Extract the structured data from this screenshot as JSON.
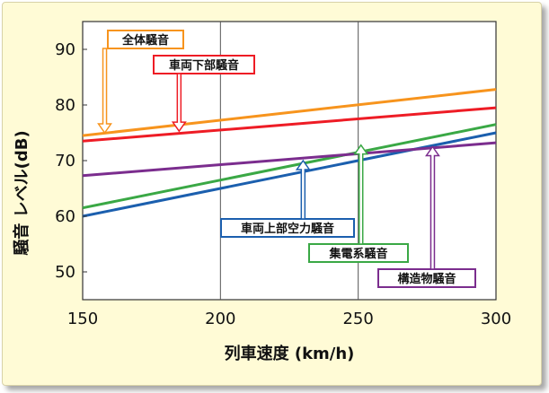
{
  "chart_data": {
    "type": "line",
    "title": "",
    "xlabel": "列車速度 (km/h)",
    "ylabel": "騒音 レベル(dB)",
    "xlim": [
      150,
      300
    ],
    "ylim": [
      45,
      95
    ],
    "x_ticks": [
      150,
      200,
      250,
      300
    ],
    "y_ticks": [
      50,
      60,
      70,
      80,
      90
    ],
    "grid": "vertical at x ticks",
    "legend": "callout labels with arrows",
    "series": [
      {
        "name": "全体騒音",
        "color": "#f7941d",
        "x": [
          150,
          300
        ],
        "y": [
          74.5,
          82.8
        ]
      },
      {
        "name": "車両下部騒音",
        "color": "#ee1c25",
        "x": [
          150,
          300
        ],
        "y": [
          73.5,
          79.5
        ]
      },
      {
        "name": "車両上部空力騒音",
        "color": "#1b5fae",
        "x": [
          150,
          300
        ],
        "y": [
          60.0,
          75.0
        ]
      },
      {
        "name": "集電系騒音",
        "color": "#3aa845",
        "x": [
          150,
          300
        ],
        "y": [
          61.5,
          76.5
        ]
      },
      {
        "name": "構造物騒音",
        "color": "#7b2d8e",
        "x": [
          150,
          300
        ],
        "y": [
          67.3,
          73.2
        ]
      }
    ],
    "annotations": [
      {
        "text": "全体騒音",
        "color": "#f7941d",
        "target": [
          158,
          75.0
        ]
      },
      {
        "text": "車両下部騒音",
        "color": "#ee1c25",
        "target": [
          185,
          75.3
        ]
      },
      {
        "text": "車両上部空力騒音",
        "color": "#1b5fae",
        "target": [
          230,
          70.0
        ]
      },
      {
        "text": "集電系騒音",
        "color": "#3aa845",
        "target": [
          251,
          72.8
        ]
      },
      {
        "text": "構造物騒音",
        "color": "#7b2d8e",
        "target": [
          277,
          72.5
        ]
      }
    ]
  }
}
